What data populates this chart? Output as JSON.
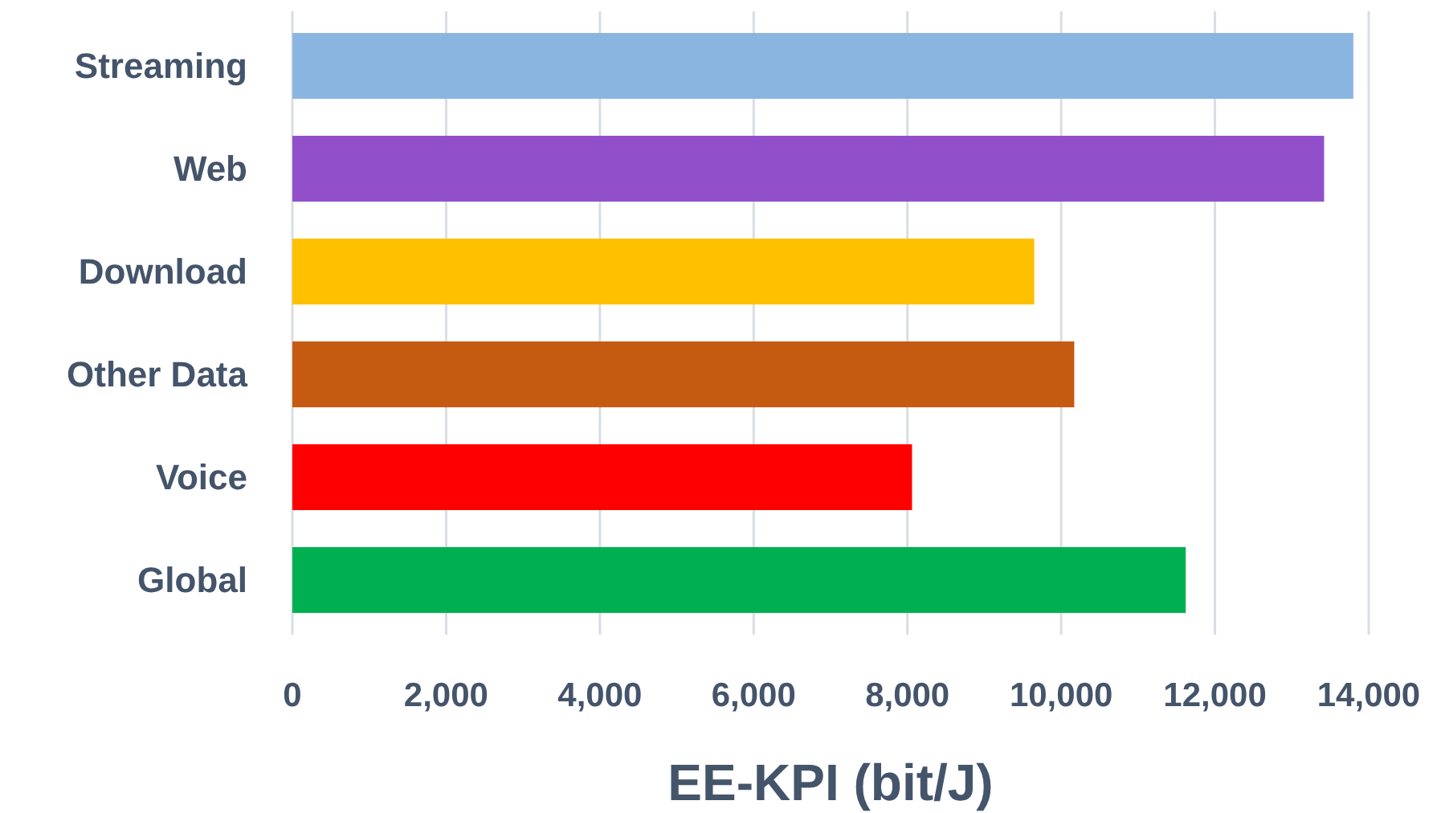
{
  "chart_data": {
    "type": "bar",
    "orientation": "horizontal",
    "xlabel": "EE-KPI (bit/J)",
    "categories": [
      "Streaming",
      "Web",
      "Download",
      "Other Data",
      "Voice",
      "Global"
    ],
    "values": [
      13800,
      13420,
      9650,
      10170,
      8060,
      11620
    ],
    "colors": [
      "#8ab5e0",
      "#9150c9",
      "#ffc000",
      "#c55a11",
      "#ff0000",
      "#00b050"
    ],
    "xlim": [
      0,
      14000
    ],
    "xticks": [
      {
        "value": 0,
        "label": "0"
      },
      {
        "value": 2000,
        "label": "2,000"
      },
      {
        "value": 4000,
        "label": "4,000"
      },
      {
        "value": 6000,
        "label": "6,000"
      },
      {
        "value": 8000,
        "label": "8,000"
      },
      {
        "value": 10000,
        "label": "10,000"
      },
      {
        "value": 12000,
        "label": "12,000"
      },
      {
        "value": 14000,
        "label": "14,000"
      }
    ],
    "grid": "x"
  }
}
